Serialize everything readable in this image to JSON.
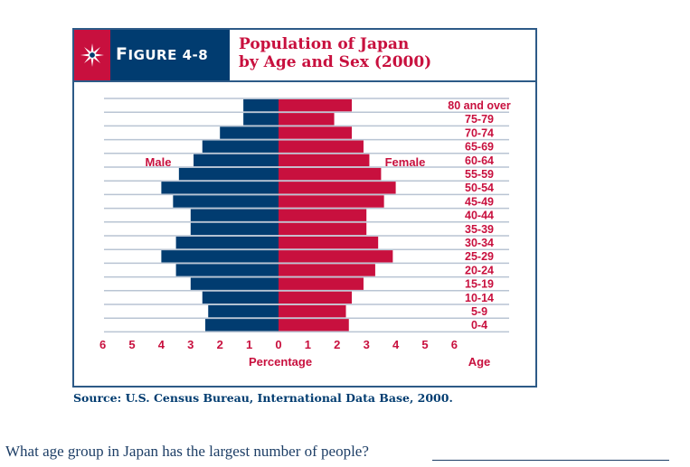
{
  "figure": {
    "label_prefix": "F",
    "label_rest": "IGURE 4-8",
    "title_line1": "Population of Japan",
    "title_line2": "by Age and Sex (2000)",
    "icon": "compass-star-icon"
  },
  "colors": {
    "male": "#013c70",
    "female": "#c8103e",
    "grid": "#b9c4d3",
    "frame": "#2d5a87"
  },
  "chart_data": {
    "type": "bar",
    "subtype": "population-pyramid",
    "title": "Population of Japan by Age and Sex (2000)",
    "xlabel": "Percentage",
    "ylabel": "Age",
    "xlim": [
      -6,
      6
    ],
    "x_ticks": [
      "6",
      "5",
      "4",
      "3",
      "2",
      "1",
      "0",
      "1",
      "2",
      "3",
      "4",
      "5",
      "6"
    ],
    "categories": [
      "80 and over",
      "75-79",
      "70-74",
      "65-69",
      "60-64",
      "55-59",
      "50-54",
      "45-49",
      "40-44",
      "35-39",
      "30-34",
      "25-29",
      "20-24",
      "15-19",
      "10-14",
      "5-9",
      "0-4"
    ],
    "series": [
      {
        "name": "Male",
        "values": [
          1.2,
          1.2,
          2.0,
          2.6,
          2.9,
          3.4,
          4.0,
          3.6,
          3.0,
          3.0,
          3.5,
          4.0,
          3.5,
          3.0,
          2.6,
          2.4,
          2.5
        ]
      },
      {
        "name": "Female",
        "values": [
          2.5,
          1.9,
          2.5,
          2.9,
          3.1,
          3.5,
          4.0,
          3.6,
          3.0,
          3.0,
          3.4,
          3.9,
          3.3,
          2.9,
          2.5,
          2.3,
          2.4
        ]
      }
    ],
    "legend": {
      "male_label": "Male",
      "female_label": "Female",
      "placement": "inline-near-bars"
    },
    "grid": true
  },
  "source": "Source:  U.S. Census Bureau, International Data Base, 2000.",
  "question": "What age group in Japan has the largest number of people?"
}
